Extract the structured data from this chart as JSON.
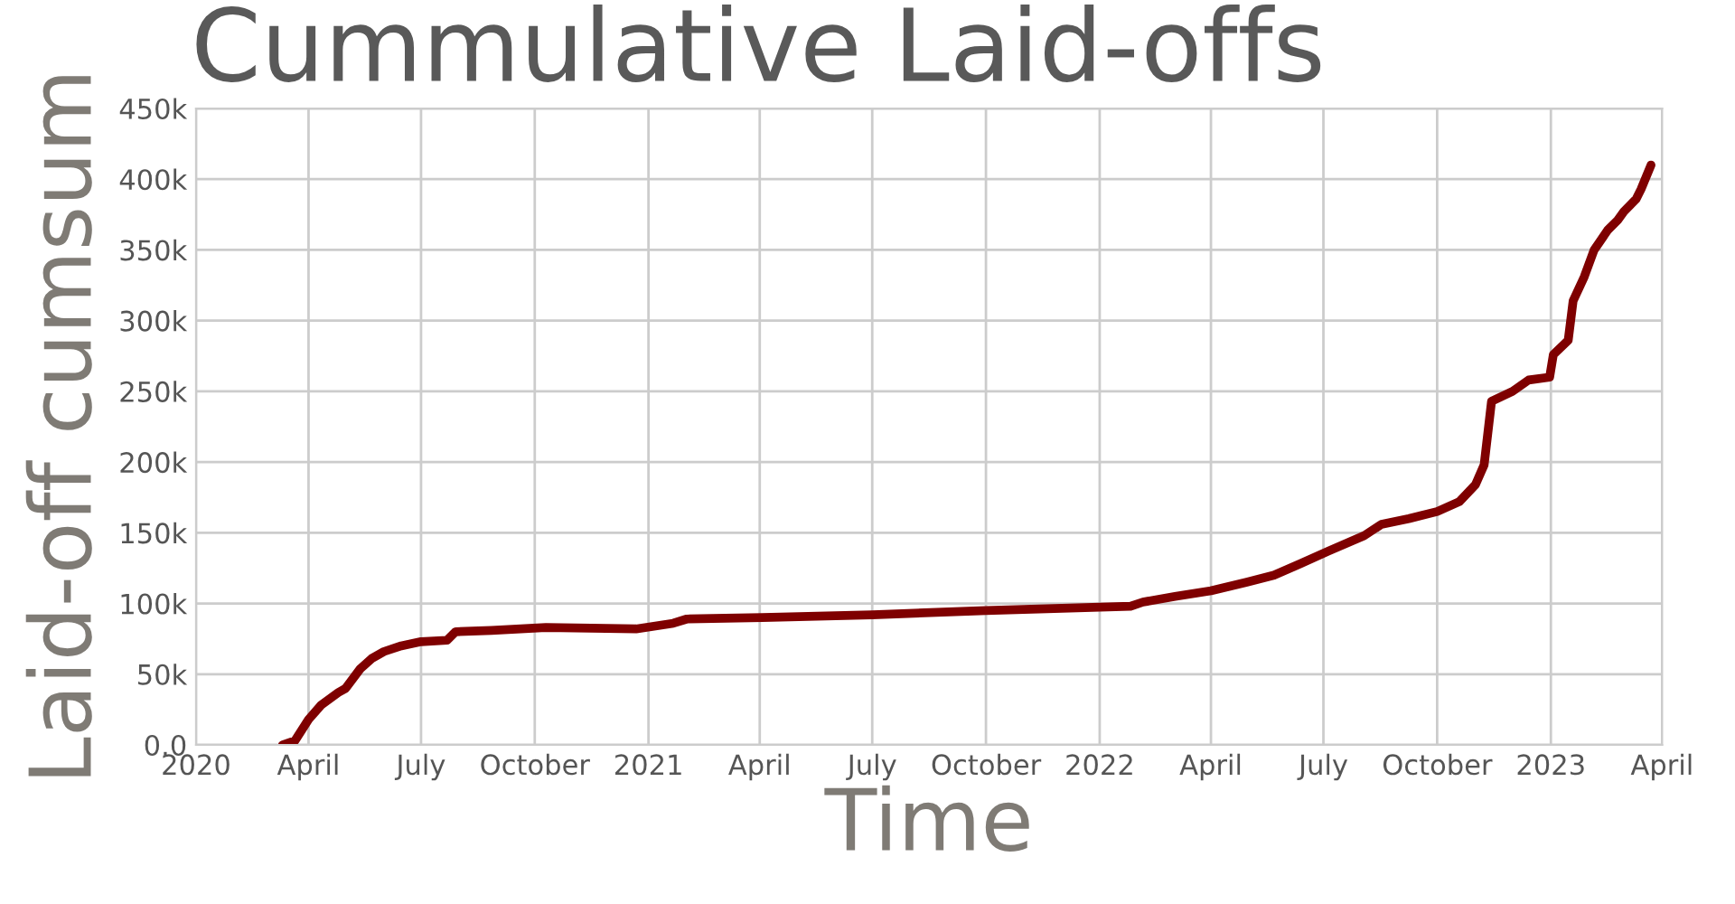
{
  "chart_data": {
    "type": "line",
    "title": "Cummulative Laid-offs",
    "xlabel": "Time",
    "ylabel": "Laid-off cumsum",
    "x": [
      "2020-03-11",
      "2020-03-21",
      "2020-04-01",
      "2020-04-11",
      "2020-04-25",
      "2020-05-01",
      "2020-05-13",
      "2020-05-22",
      "2020-06-01",
      "2020-06-15",
      "2020-07-01",
      "2020-07-22",
      "2020-07-29",
      "2020-08-27",
      "2020-10-10",
      "2020-12-22",
      "2021-01-21",
      "2021-02-01",
      "2021-04-03",
      "2021-07-01",
      "2021-10-01",
      "2022-01-26",
      "2022-02-05",
      "2022-03-03",
      "2022-04-01",
      "2022-04-30",
      "2022-05-22",
      "2022-06-12",
      "2022-07-05",
      "2022-08-03",
      "2022-08-17",
      "2022-09-08",
      "2022-10-01",
      "2022-10-19",
      "2022-11-01",
      "2022-11-08",
      "2022-11-14",
      "2022-12-01",
      "2022-12-14",
      "2022-12-31",
      "2023-01-03",
      "2023-01-15",
      "2023-01-19",
      "2023-01-28",
      "2023-02-05",
      "2023-02-16",
      "2023-02-24",
      "2023-03-01",
      "2023-03-11",
      "2023-03-15",
      "2023-03-23"
    ],
    "series": [
      {
        "color": "#7f0000",
        "values": [
          0,
          3000,
          18000,
          28000,
          37000,
          40000,
          54000,
          61000,
          66000,
          70000,
          73000,
          74000,
          80000,
          81000,
          83000,
          82000,
          86000,
          89000,
          90000,
          92000,
          95000,
          98000,
          101000,
          105000,
          109000,
          115000,
          120000,
          128000,
          137000,
          148000,
          156000,
          160000,
          165000,
          172000,
          184000,
          198000,
          243000,
          250000,
          258000,
          260000,
          276000,
          286000,
          314000,
          331000,
          350000,
          364000,
          371000,
          377000,
          386000,
          393000,
          410000
        ]
      }
    ],
    "xlim": [
      "2020-01-01",
      "2023-04-01"
    ],
    "xticks": [
      {
        "value": "2020-01-01",
        "label": "2020"
      },
      {
        "value": "2020-04-01",
        "label": "April"
      },
      {
        "value": "2020-07-01",
        "label": "July"
      },
      {
        "value": "2020-10-01",
        "label": "October"
      },
      {
        "value": "2021-01-01",
        "label": "2021"
      },
      {
        "value": "2021-04-01",
        "label": "April"
      },
      {
        "value": "2021-07-01",
        "label": "July"
      },
      {
        "value": "2021-10-01",
        "label": "October"
      },
      {
        "value": "2022-01-01",
        "label": "2022"
      },
      {
        "value": "2022-04-01",
        "label": "April"
      },
      {
        "value": "2022-07-01",
        "label": "July"
      },
      {
        "value": "2022-10-01",
        "label": "October"
      },
      {
        "value": "2023-01-01",
        "label": "2023"
      },
      {
        "value": "2023-04-01",
        "label": "April"
      }
    ],
    "ylim": [
      0,
      450000
    ],
    "yticks": [
      {
        "value": 0,
        "label": "0.0"
      },
      {
        "value": 50000,
        "label": "50k"
      },
      {
        "value": 100000,
        "label": "100k"
      },
      {
        "value": 150000,
        "label": "150k"
      },
      {
        "value": 200000,
        "label": "200k"
      },
      {
        "value": 250000,
        "label": "250k"
      },
      {
        "value": 300000,
        "label": "300k"
      },
      {
        "value": 350000,
        "label": "350k"
      },
      {
        "value": 400000,
        "label": "400k"
      },
      {
        "value": 450000,
        "label": "450k"
      }
    ],
    "grid": true,
    "line_style": "solid"
  }
}
